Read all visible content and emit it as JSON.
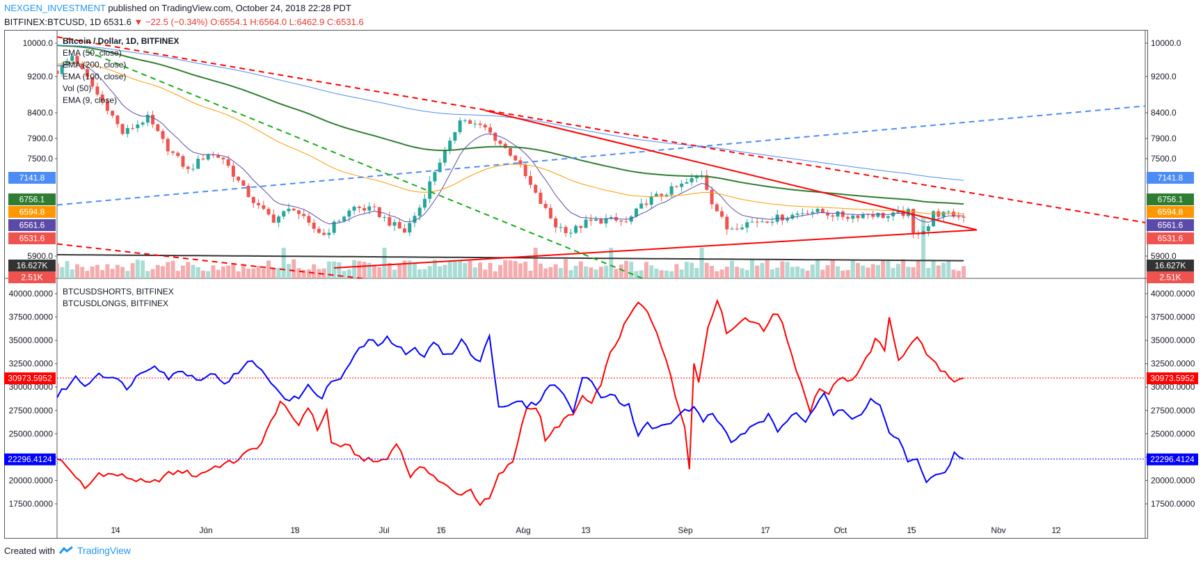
{
  "header": {
    "author": "NEXGEN_INVESTMENT",
    "published": "published on TradingView.com, October 24, 2018 22:28 PDT",
    "symbol": "BITFINEX:BTCUSD, 1D",
    "last": "6531.6",
    "change": "−22.5 (−0.34%)",
    "ohlc": "O:6554.1 H:6564.0 L:6462.9 C:6531.6"
  },
  "footer": {
    "created_with": "Created with",
    "brand": "TradingView"
  },
  "colors": {
    "up": "#26a69a",
    "down": "#ef5350",
    "shorts": "#ff0000",
    "longs": "#0000ff"
  },
  "chart_data": [
    {
      "type": "candlestick",
      "title": "Bitcoin / Dollar, 1D, BITFINEX",
      "legend": [
        "EMA (50, close)",
        "EMA (200, close)",
        "EMA (100, close)",
        "Vol (50)",
        "EMA (9, close)"
      ],
      "x_ticks": [
        "14",
        "Jun",
        "18",
        "Jul",
        "16",
        "Aug",
        "13",
        "Sep",
        "17",
        "Oct",
        "15",
        "Nov",
        "12"
      ],
      "y_ticks": [
        "10000.0",
        "9200.0",
        "8400.0",
        "7900.0",
        "7500.0",
        "5900.0"
      ],
      "price_labels": [
        {
          "label": "7141.8",
          "value": 7141.8,
          "color": "#4c8cf5"
        },
        {
          "label": "6756.1",
          "value": 6756.1,
          "color": "#2e7d32"
        },
        {
          "label": "6594.8",
          "value": 6594.8,
          "color": "#ff9800"
        },
        {
          "label": "6561.6",
          "value": 6561.6,
          "color": "#5b4aa8"
        },
        {
          "label": "6531.6",
          "value": 6531.6,
          "color": "#ef5350"
        },
        {
          "label": "16.627K",
          "value": 16627,
          "color": "#333333"
        },
        {
          "label": "2.51K",
          "value": 2510,
          "color": "#ef5350"
        }
      ],
      "close_keypoints": [
        [
          0,
          9300
        ],
        [
          3,
          9700
        ],
        [
          8,
          8800
        ],
        [
          10,
          8500
        ],
        [
          13,
          8000
        ],
        [
          18,
          8300
        ],
        [
          22,
          7700
        ],
        [
          26,
          7300
        ],
        [
          30,
          7600
        ],
        [
          33,
          7500
        ],
        [
          37,
          7000
        ],
        [
          40,
          6700
        ],
        [
          43,
          6500
        ],
        [
          47,
          6700
        ],
        [
          50,
          6400
        ],
        [
          53,
          6250
        ],
        [
          56,
          6500
        ],
        [
          59,
          6700
        ],
        [
          63,
          6650
        ],
        [
          66,
          6450
        ],
        [
          69,
          6300
        ],
        [
          72,
          6700
        ],
        [
          75,
          7300
        ],
        [
          78,
          7800
        ],
        [
          80,
          8300
        ],
        [
          82,
          8200
        ],
        [
          85,
          8100
        ],
        [
          88,
          7800
        ],
        [
          91,
          7500
        ],
        [
          95,
          6900
        ],
        [
          99,
          6400
        ],
        [
          102,
          6300
        ],
        [
          105,
          6450
        ],
        [
          109,
          6500
        ],
        [
          113,
          6450
        ],
        [
          117,
          6800
        ],
        [
          121,
          6950
        ],
        [
          125,
          7100
        ],
        [
          128,
          7250
        ],
        [
          130,
          6800
        ],
        [
          133,
          6350
        ],
        [
          137,
          6450
        ],
        [
          141,
          6500
        ],
        [
          145,
          6550
        ],
        [
          149,
          6650
        ],
        [
          153,
          6600
        ],
        [
          157,
          6550
        ],
        [
          161,
          6600
        ],
        [
          165,
          6550
        ],
        [
          169,
          6620
        ],
        [
          170,
          6250
        ],
        [
          173,
          6400
        ],
        [
          174,
          6600
        ],
        [
          178,
          6570
        ],
        [
          180,
          6531.6
        ]
      ],
      "ema9_close": 6561.6,
      "ema50_close": 6594.8,
      "ema100_close": 6756.1,
      "ema200_close": 7141.8
    },
    {
      "type": "line",
      "title": "",
      "series": [
        {
          "name": "BTCUSDSHORTS, BITFINEX",
          "color": "#ff0000",
          "last": 30973.5952,
          "keypoints": [
            [
              0,
              22500
            ],
            [
              4,
              20500
            ],
            [
              6,
              19000
            ],
            [
              9,
              20800
            ],
            [
              14,
              20500
            ],
            [
              20,
              19600
            ],
            [
              24,
              20700
            ],
            [
              27,
              21000
            ],
            [
              30,
              20500
            ],
            [
              34,
              21500
            ],
            [
              38,
              22000
            ],
            [
              44,
              24000
            ],
            [
              48,
              28500
            ],
            [
              50,
              27000
            ],
            [
              52,
              26000
            ],
            [
              54,
              28000
            ],
            [
              56,
              25500
            ],
            [
              58,
              27500
            ],
            [
              59,
              24000
            ],
            [
              63,
              23500
            ],
            [
              65,
              22500
            ],
            [
              68,
              22000
            ],
            [
              71,
              22300
            ],
            [
              73,
              24200
            ],
            [
              76,
              20500
            ],
            [
              79,
              21500
            ],
            [
              82,
              20000
            ],
            [
              86,
              18500
            ],
            [
              89,
              19000
            ],
            [
              91,
              17500
            ],
            [
              93,
              18000
            ],
            [
              95,
              20500
            ],
            [
              98,
              22000
            ],
            [
              101,
              28000
            ],
            [
              103,
              27500
            ],
            [
              104,
              27000
            ],
            [
              105,
              24000
            ],
            [
              107,
              25500
            ],
            [
              109,
              26500
            ],
            [
              111,
              27000
            ],
            [
              113,
              29000
            ],
            [
              115,
              28000
            ],
            [
              117,
              30500
            ],
            [
              119,
              33500
            ],
            [
              121,
              35500
            ],
            [
              123,
              37500
            ],
            [
              125,
              39000
            ],
            [
              127,
              38000
            ],
            [
              129,
              36000
            ],
            [
              131,
              33000
            ],
            [
              133,
              29000
            ],
            [
              135,
              26000
            ],
            [
              136,
              21500
            ],
            [
              137,
              32500
            ],
            [
              138,
              30500
            ],
            [
              140,
              36500
            ],
            [
              142,
              39500
            ],
            [
              144,
              36000
            ],
            [
              146,
              36500
            ],
            [
              148,
              37500
            ],
            [
              150,
              37000
            ],
            [
              152,
              36000
            ],
            [
              154,
              38000
            ],
            [
              156,
              37000
            ],
            [
              158,
              33500
            ],
            [
              160,
              30500
            ],
            [
              162,
              27500
            ],
            [
              164,
              30000
            ],
            [
              166,
              29000
            ],
            [
              168,
              31000
            ],
            [
              170,
              30500
            ],
            [
              172,
              31500
            ],
            [
              174,
              33000
            ],
            [
              176,
              35000
            ],
            [
              178,
              34000
            ],
            [
              179,
              37500
            ],
            [
              181,
              33000
            ],
            [
              183,
              34000
            ],
            [
              185,
              35500
            ],
            [
              187,
              33500
            ],
            [
              189,
              32500
            ],
            [
              191,
              31500
            ],
            [
              193,
              30300
            ],
            [
              195,
              30973.5952
            ]
          ]
        },
        {
          "name": "BTCUSDLONGS, BITFINEX",
          "color": "#0000ff",
          "last": 22296.4124,
          "keypoints": [
            [
              0,
              29000
            ],
            [
              2,
              30000
            ],
            [
              4,
              31000
            ],
            [
              6,
              30200
            ],
            [
              9,
              31500
            ],
            [
              12,
              31000
            ],
            [
              15,
              30000
            ],
            [
              18,
              31500
            ],
            [
              21,
              32500
            ],
            [
              24,
              31000
            ],
            [
              27,
              31800
            ],
            [
              30,
              30800
            ],
            [
              33,
              31500
            ],
            [
              36,
              30500
            ],
            [
              39,
              31500
            ],
            [
              42,
              33000
            ],
            [
              45,
              31000
            ],
            [
              48,
              29500
            ],
            [
              50,
              28500
            ],
            [
              52,
              29000
            ],
            [
              54,
              30000
            ],
            [
              57,
              29000
            ],
            [
              59,
              30500
            ],
            [
              61,
              31000
            ],
            [
              63,
              32500
            ],
            [
              65,
              34000
            ],
            [
              67,
              35000
            ],
            [
              69,
              34500
            ],
            [
              71,
              35200
            ],
            [
              73,
              34500
            ],
            [
              75,
              33500
            ],
            [
              77,
              34000
            ],
            [
              79,
              33500
            ],
            [
              81,
              35000
            ],
            [
              83,
              33500
            ],
            [
              85,
              33500
            ],
            [
              87,
              35000
            ],
            [
              89,
              33500
            ],
            [
              91,
              33000
            ],
            [
              93,
              35500
            ],
            [
              95,
              28000
            ],
            [
              97,
              27800
            ],
            [
              99,
              28500
            ],
            [
              101,
              28000
            ],
            [
              103,
              28200
            ],
            [
              105,
              29500
            ],
            [
              107,
              30500
            ],
            [
              109,
              29000
            ],
            [
              111,
              27500
            ],
            [
              113,
              31000
            ],
            [
              115,
              30500
            ],
            [
              117,
              29000
            ],
            [
              119,
              29500
            ],
            [
              121,
              28500
            ],
            [
              123,
              28000
            ],
            [
              125,
              25000
            ],
            [
              127,
              26000
            ],
            [
              129,
              25500
            ],
            [
              131,
              26000
            ],
            [
              133,
              26500
            ],
            [
              135,
              27500
            ],
            [
              137,
              27800
            ],
            [
              139,
              26500
            ],
            [
              141,
              27000
            ],
            [
              143,
              26000
            ],
            [
              145,
              24000
            ],
            [
              147,
              25000
            ],
            [
              149,
              25500
            ],
            [
              151,
              26000
            ],
            [
              153,
              27000
            ],
            [
              155,
              25000
            ],
            [
              157,
              26500
            ],
            [
              159,
              27500
            ],
            [
              161,
              26500
            ],
            [
              163,
              28000
            ],
            [
              165,
              29500
            ],
            [
              167,
              27000
            ],
            [
              169,
              27500
            ],
            [
              171,
              26500
            ],
            [
              173,
              27000
            ],
            [
              175,
              29000
            ],
            [
              177,
              28000
            ],
            [
              179,
              25000
            ],
            [
              181,
              24500
            ],
            [
              183,
              22000
            ],
            [
              185,
              22000
            ],
            [
              187,
              20000
            ],
            [
              189,
              20500
            ],
            [
              191,
              21000
            ],
            [
              193,
              22800
            ],
            [
              195,
              22296.4124
            ]
          ]
        }
      ],
      "y_ticks": [
        "40000.0000",
        "37500.0000",
        "35000.0000",
        "32500.0000",
        "30000.0000",
        "27500.0000",
        "25000.0000",
        "22500.0000",
        "20000.0000",
        "17500.0000"
      ],
      "last_labels": [
        "30973.5952",
        "22296.4124"
      ]
    }
  ]
}
